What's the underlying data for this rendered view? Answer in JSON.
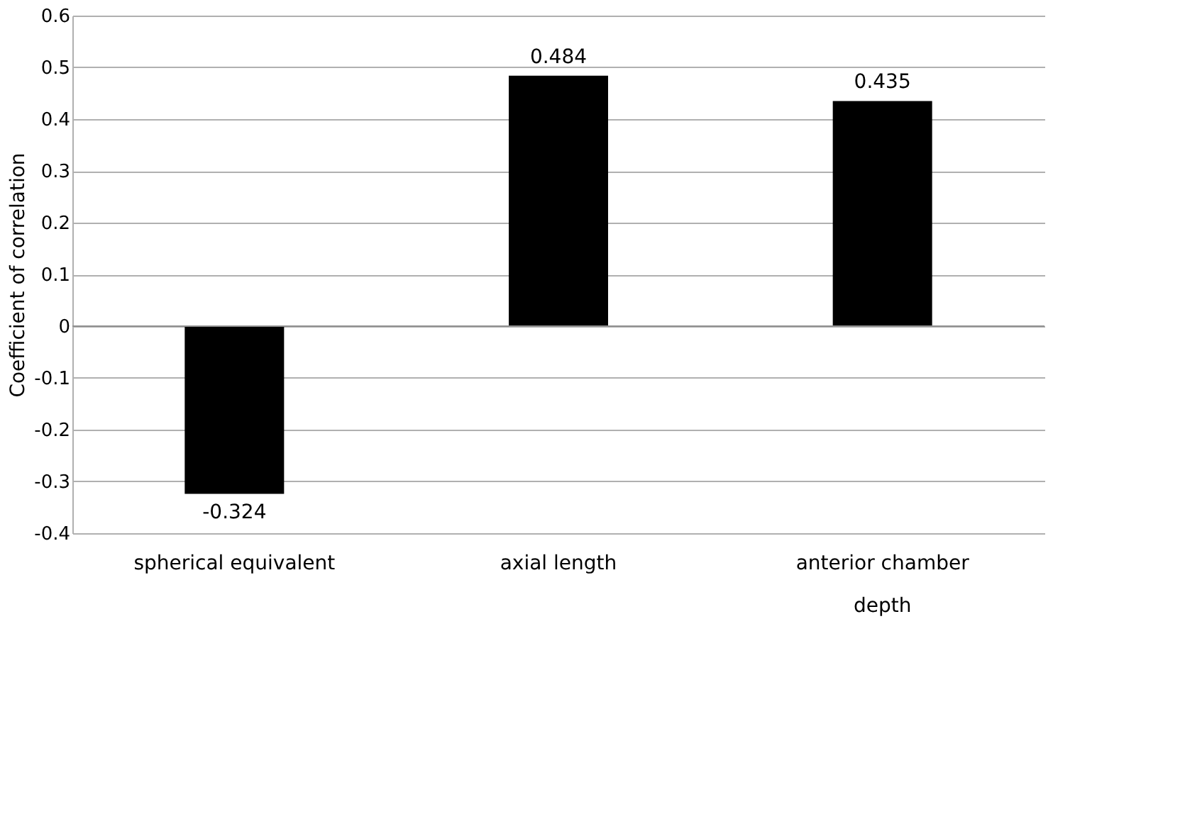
{
  "chart_data": {
    "type": "bar",
    "ylabel": "Coefficient of correlation",
    "categories": [
      "spherical equivalent",
      "axial length",
      "anterior chamber depth"
    ],
    "values": [
      -0.324,
      0.484,
      0.435
    ],
    "color": "#000000",
    "ylim": [
      -0.4,
      0.6
    ],
    "yticks": [
      -0.4,
      -0.3,
      -0.2,
      -0.1,
      0,
      0.1,
      0.2,
      0.3,
      0.4,
      0.5,
      0.6
    ],
    "grid": "y",
    "data_labels": true
  }
}
